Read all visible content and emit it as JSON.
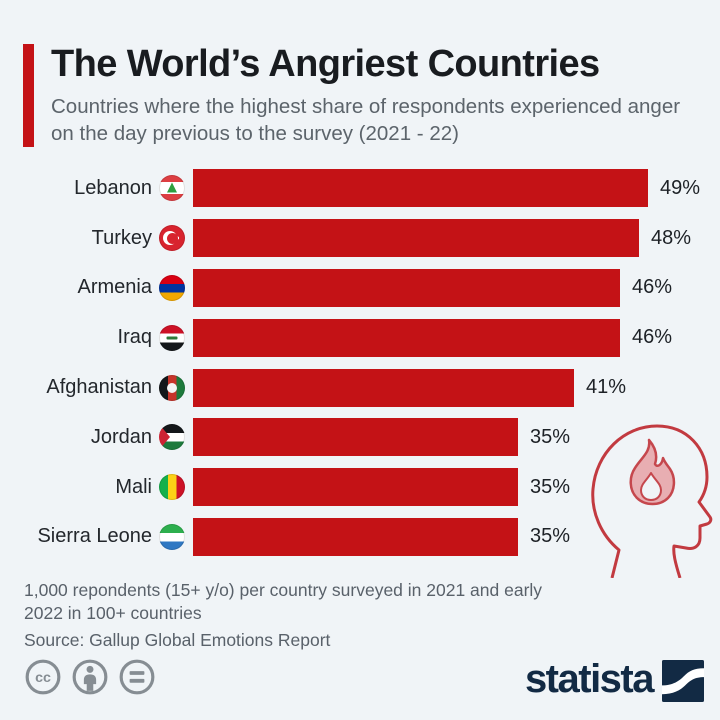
{
  "page": {
    "background": "#f0f4f7"
  },
  "header": {
    "title": "The World’s Angriest Countries",
    "subtitle": "Countries where the highest share of respondents experienced anger on the day previous to the survey (2021 - 22)",
    "accent_color": "#c41216"
  },
  "chart_data": {
    "type": "bar",
    "orientation": "horizontal",
    "unit": "percent",
    "xlim": [
      0,
      49
    ],
    "bar_color": "#c41216",
    "categories": [
      "Lebanon",
      "Turkey",
      "Armenia",
      "Iraq",
      "Afghanistan",
      "Jordan",
      "Mali",
      "Sierra Leone"
    ],
    "values": [
      49,
      48,
      46,
      46,
      41,
      35,
      35,
      35
    ],
    "value_labels": [
      "49%",
      "48%",
      "46%",
      "46%",
      "41%",
      "35%",
      "35%",
      "35%"
    ],
    "flag_icons": [
      "lebanon-flag-icon",
      "turkey-flag-icon",
      "armenia-flag-icon",
      "iraq-flag-icon",
      "afghanistan-flag-icon",
      "jordan-flag-icon",
      "mali-flag-icon",
      "sierra-leone-flag-icon"
    ]
  },
  "illustration": {
    "name": "angry-head-flame-icon",
    "outline_color": "#c23a40",
    "flame_fill": "#e8aeb2"
  },
  "footer": {
    "note": "1,000 repondents (15+ y/o) per country surveyed in 2021 and early 2022 in 100+ countries",
    "source": "Source: Gallup Global Emotions Report"
  },
  "branding": {
    "logo_text": "statista",
    "logo_color": "#122a44",
    "license_icons": [
      "cc-icon",
      "attribution-icon",
      "equals-icon"
    ]
  }
}
